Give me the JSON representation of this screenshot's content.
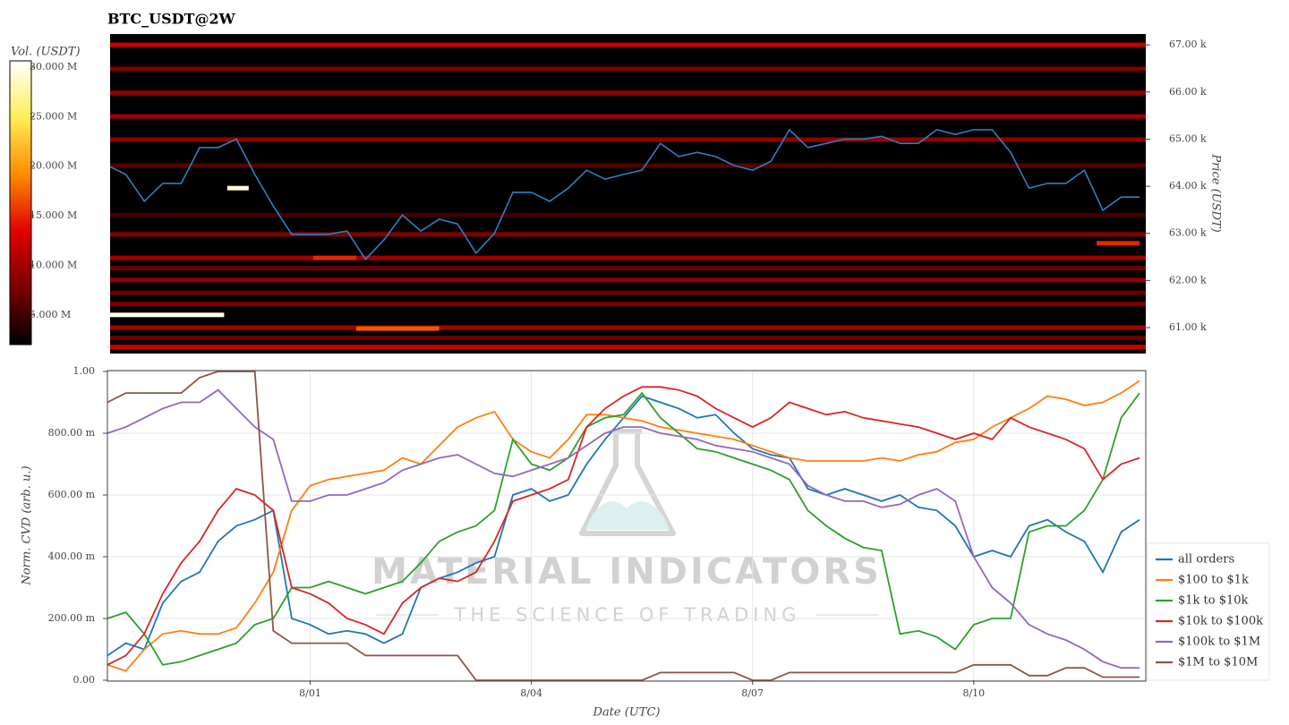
{
  "chart_data": [
    {
      "type": "heatmap",
      "title": "BTC_USDT@2W",
      "ylabel": "Price (USDT)",
      "colorbar_label": "Vol. (USDT)",
      "xlim": [
        "7/29 06:00",
        "8/12 08:00"
      ],
      "ylim": [
        60450,
        67230
      ],
      "yticks": [
        {
          "value": 61000,
          "label": "61.00 k"
        },
        {
          "value": 62000,
          "label": "62.00 k"
        },
        {
          "value": 63000,
          "label": "63.00 k"
        },
        {
          "value": 64000,
          "label": "64.00 k"
        },
        {
          "value": 65000,
          "label": "65.00 k"
        },
        {
          "value": 66000,
          "label": "66.00 k"
        },
        {
          "value": 67000,
          "label": "67.00 k"
        }
      ],
      "clim": [
        2000000,
        30630000
      ],
      "cticks": [
        {
          "value": 5000000,
          "label": "5.000 M"
        },
        {
          "value": 10000000,
          "label": "10.000 M"
        },
        {
          "value": 15000000,
          "label": "15.000 M"
        },
        {
          "value": 20000000,
          "label": "20.000 M"
        },
        {
          "value": 25000000,
          "label": "25.000 M"
        },
        {
          "value": 30000000,
          "label": "30.000 M"
        }
      ],
      "colormap": [
        "#000000",
        "#7a0000",
        "#e00000",
        "#ff8c00",
        "#ffee55",
        "#ffffff"
      ],
      "bands": [
        {
          "price": 67000,
          "volume": 12000000
        },
        {
          "price": 66490,
          "volume": 8000000
        },
        {
          "price": 65980,
          "volume": 9000000
        },
        {
          "price": 65480,
          "volume": 10000000
        },
        {
          "price": 64990,
          "volume": 9000000
        },
        {
          "price": 64440,
          "volume": 6000000
        },
        {
          "price": 63390,
          "volume": 5000000
        },
        {
          "price": 62980,
          "volume": 8000000
        },
        {
          "price": 62480,
          "volume": 10000000
        },
        {
          "price": 62260,
          "volume": 7000000
        },
        {
          "price": 62010,
          "volume": 9000000
        },
        {
          "price": 61740,
          "volume": 7000000
        },
        {
          "price": 61500,
          "volume": 8000000
        },
        {
          "price": 61000,
          "volume": 10000000
        },
        {
          "price": 60780,
          "volume": 7000000
        },
        {
          "price": 60590,
          "volume": 12000000
        }
      ],
      "segments": [
        {
          "price": 61270,
          "start": "7/29 06:00",
          "end": "7/30 20:00",
          "volume": 30000000
        },
        {
          "price": 63960,
          "start": "7/30 21:00",
          "end": "7/31 04:00",
          "volume": 29000000
        },
        {
          "price": 60980,
          "start": "8/01 15:00",
          "end": "8/02 18:00",
          "volume": 17000000
        },
        {
          "price": 62480,
          "start": "8/01 01:00",
          "end": "8/01 15:00",
          "volume": 15000000
        },
        {
          "price": 62790,
          "start": "8/11 16:00",
          "end": "8/12 06:00",
          "volume": 15000000
        }
      ],
      "line": {
        "color": "#2f7fc0",
        "x": [
          "7/29 06:00",
          "7/29 12:00",
          "7/29 18:00",
          "7/30 00:00",
          "7/30 06:00",
          "7/30 12:00",
          "7/30 18:00",
          "7/31 00:00",
          "7/31 06:00",
          "7/31 12:00",
          "7/31 18:00",
          "8/01 00:00",
          "8/01 06:00",
          "8/01 12:00",
          "8/01 18:00",
          "8/02 00:00",
          "8/02 06:00",
          "8/02 12:00",
          "8/02 18:00",
          "8/03 00:00",
          "8/03 06:00",
          "8/03 12:00",
          "8/03 18:00",
          "8/04 00:00",
          "8/04 06:00",
          "8/04 12:00",
          "8/04 18:00",
          "8/05 00:00",
          "8/05 06:00",
          "8/05 12:00",
          "8/05 18:00",
          "8/06 00:00",
          "8/06 06:00",
          "8/06 12:00",
          "8/06 18:00",
          "8/07 00:00",
          "8/07 06:00",
          "8/07 12:00",
          "8/07 18:00",
          "8/08 00:00",
          "8/08 06:00",
          "8/08 12:00",
          "8/08 18:00",
          "8/09 00:00",
          "8/09 06:00",
          "8/09 12:00",
          "8/09 18:00",
          "8/10 00:00",
          "8/10 06:00",
          "8/10 12:00",
          "8/10 18:00",
          "8/11 00:00",
          "8/11 06:00",
          "8/11 12:00",
          "8/11 18:00",
          "8/12 00:00",
          "8/12 06:00"
        ],
        "values": [
          64440,
          64250,
          63680,
          64060,
          64060,
          64820,
          64820,
          65000,
          64250,
          63580,
          62980,
          62980,
          62980,
          63050,
          62450,
          62860,
          63390,
          63050,
          63300,
          63200,
          62580,
          63000,
          63870,
          63870,
          63680,
          63960,
          64340,
          64150,
          64250,
          64340,
          64910,
          64630,
          64720,
          64630,
          64440,
          64340,
          64530,
          65200,
          64820,
          64910,
          65000,
          65000,
          65060,
          64910,
          64910,
          65200,
          65100,
          65200,
          65200,
          64720,
          63960,
          64060,
          64060,
          64340,
          63490,
          63770,
          63770
        ]
      }
    },
    {
      "type": "line",
      "xlabel": "Date (UTC)",
      "ylabel": "Norm. CVD (arb. u.)",
      "grid": true,
      "legend": "right",
      "xlim": [
        "7/29 06:00",
        "8/12 08:00"
      ],
      "xticks": [
        "8/01",
        "8/04",
        "8/07",
        "8/10"
      ],
      "ylim": [
        0,
        1
      ],
      "yticks": [
        {
          "value": 0,
          "label": "0.00"
        },
        {
          "value": 0.2,
          "label": "200.00 m"
        },
        {
          "value": 0.4,
          "label": "400.00 m"
        },
        {
          "value": 0.6,
          "label": "600.00 m"
        },
        {
          "value": 0.8,
          "label": "800.00 m"
        },
        {
          "value": 1,
          "label": "1.00"
        }
      ],
      "watermark": [
        "MATERIAL INDICATORS",
        "THE SCIENCE OF TRADING"
      ],
      "x": [
        "7/29 06:00",
        "7/29 12:00",
        "7/29 18:00",
        "7/30 00:00",
        "7/30 06:00",
        "7/30 12:00",
        "7/30 18:00",
        "7/31 00:00",
        "7/31 06:00",
        "7/31 12:00",
        "7/31 18:00",
        "8/01 00:00",
        "8/01 06:00",
        "8/01 12:00",
        "8/01 18:00",
        "8/02 00:00",
        "8/02 06:00",
        "8/02 12:00",
        "8/02 18:00",
        "8/03 00:00",
        "8/03 06:00",
        "8/03 12:00",
        "8/03 18:00",
        "8/04 00:00",
        "8/04 06:00",
        "8/04 12:00",
        "8/04 18:00",
        "8/05 00:00",
        "8/05 06:00",
        "8/05 12:00",
        "8/05 18:00",
        "8/06 00:00",
        "8/06 06:00",
        "8/06 12:00",
        "8/06 18:00",
        "8/07 00:00",
        "8/07 06:00",
        "8/07 12:00",
        "8/07 18:00",
        "8/08 00:00",
        "8/08 06:00",
        "8/08 12:00",
        "8/08 18:00",
        "8/09 00:00",
        "8/09 06:00",
        "8/09 12:00",
        "8/09 18:00",
        "8/10 00:00",
        "8/10 06:00",
        "8/10 12:00",
        "8/10 18:00",
        "8/11 00:00",
        "8/11 06:00",
        "8/11 12:00",
        "8/11 18:00",
        "8/12 00:00",
        "8/12 06:00"
      ],
      "series": [
        {
          "name": "all orders",
          "color": "#1f77b4",
          "values": [
            0.08,
            0.12,
            0.1,
            0.25,
            0.32,
            0.35,
            0.45,
            0.5,
            0.52,
            0.55,
            0.2,
            0.18,
            0.15,
            0.16,
            0.15,
            0.12,
            0.15,
            0.3,
            0.33,
            0.35,
            0.38,
            0.4,
            0.6,
            0.62,
            0.58,
            0.6,
            0.7,
            0.78,
            0.85,
            0.92,
            0.9,
            0.88,
            0.85,
            0.86,
            0.8,
            0.75,
            0.73,
            0.72,
            0.62,
            0.6,
            0.62,
            0.6,
            0.58,
            0.6,
            0.56,
            0.55,
            0.5,
            0.4,
            0.42,
            0.4,
            0.5,
            0.52,
            0.48,
            0.45,
            0.35,
            0.48,
            0.52
          ]
        },
        {
          "name": "$100 to $1k",
          "color": "#ff7f0e",
          "values": [
            0.05,
            0.03,
            0.1,
            0.15,
            0.16,
            0.15,
            0.15,
            0.17,
            0.25,
            0.35,
            0.55,
            0.63,
            0.65,
            0.66,
            0.67,
            0.68,
            0.72,
            0.7,
            0.76,
            0.82,
            0.85,
            0.87,
            0.78,
            0.74,
            0.72,
            0.78,
            0.86,
            0.86,
            0.85,
            0.84,
            0.82,
            0.81,
            0.8,
            0.79,
            0.78,
            0.76,
            0.74,
            0.72,
            0.71,
            0.71,
            0.71,
            0.71,
            0.72,
            0.71,
            0.73,
            0.74,
            0.77,
            0.78,
            0.82,
            0.85,
            0.88,
            0.92,
            0.91,
            0.89,
            0.9,
            0.93,
            0.97
          ]
        },
        {
          "name": "$1k to $10k",
          "color": "#2ca02c",
          "values": [
            0.2,
            0.22,
            0.15,
            0.05,
            0.06,
            0.08,
            0.1,
            0.12,
            0.18,
            0.2,
            0.3,
            0.3,
            0.32,
            0.3,
            0.28,
            0.3,
            0.32,
            0.38,
            0.45,
            0.48,
            0.5,
            0.55,
            0.78,
            0.7,
            0.68,
            0.72,
            0.82,
            0.85,
            0.86,
            0.93,
            0.85,
            0.8,
            0.75,
            0.74,
            0.72,
            0.7,
            0.68,
            0.65,
            0.55,
            0.5,
            0.46,
            0.43,
            0.42,
            0.15,
            0.16,
            0.14,
            0.1,
            0.18,
            0.2,
            0.2,
            0.48,
            0.5,
            0.5,
            0.55,
            0.65,
            0.85,
            0.93
          ]
        },
        {
          "name": "$10k to $100k",
          "color": "#d62728",
          "values": [
            0.05,
            0.08,
            0.15,
            0.28,
            0.38,
            0.45,
            0.55,
            0.62,
            0.6,
            0.55,
            0.3,
            0.28,
            0.25,
            0.2,
            0.18,
            0.15,
            0.25,
            0.3,
            0.33,
            0.32,
            0.35,
            0.45,
            0.58,
            0.6,
            0.62,
            0.65,
            0.82,
            0.88,
            0.92,
            0.95,
            0.95,
            0.94,
            0.92,
            0.88,
            0.85,
            0.82,
            0.85,
            0.9,
            0.88,
            0.86,
            0.87,
            0.85,
            0.84,
            0.83,
            0.82,
            0.8,
            0.78,
            0.8,
            0.78,
            0.85,
            0.82,
            0.8,
            0.78,
            0.75,
            0.65,
            0.7,
            0.72
          ]
        },
        {
          "name": "$100k to $1M",
          "color": "#9467bd",
          "values": [
            0.8,
            0.82,
            0.85,
            0.88,
            0.9,
            0.9,
            0.94,
            0.88,
            0.82,
            0.78,
            0.58,
            0.58,
            0.6,
            0.6,
            0.62,
            0.64,
            0.68,
            0.7,
            0.72,
            0.73,
            0.7,
            0.67,
            0.66,
            0.68,
            0.7,
            0.72,
            0.76,
            0.8,
            0.82,
            0.82,
            0.8,
            0.79,
            0.78,
            0.76,
            0.75,
            0.74,
            0.72,
            0.7,
            0.63,
            0.6,
            0.58,
            0.58,
            0.56,
            0.57,
            0.6,
            0.62,
            0.58,
            0.4,
            0.3,
            0.25,
            0.18,
            0.15,
            0.13,
            0.1,
            0.06,
            0.04,
            0.04
          ]
        },
        {
          "name": "$1M to $10M",
          "color": "#8c564b",
          "values": [
            0.9,
            0.93,
            0.93,
            0.93,
            0.93,
            0.98,
            1.0,
            1.0,
            1.0,
            0.16,
            0.12,
            0.12,
            0.12,
            0.12,
            0.08,
            0.08,
            0.08,
            0.08,
            0.08,
            0.08,
            0,
            0,
            0,
            0,
            0,
            0,
            0,
            0,
            0,
            0,
            0.025,
            0.025,
            0.025,
            0.025,
            0.025,
            0,
            0,
            0.025,
            0.025,
            0.025,
            0.025,
            0.025,
            0.025,
            0.025,
            0.025,
            0.025,
            0.025,
            0.05,
            0.05,
            0.05,
            0.015,
            0.015,
            0.04,
            0.04,
            0.01,
            0.01,
            0.01
          ]
        }
      ]
    }
  ]
}
